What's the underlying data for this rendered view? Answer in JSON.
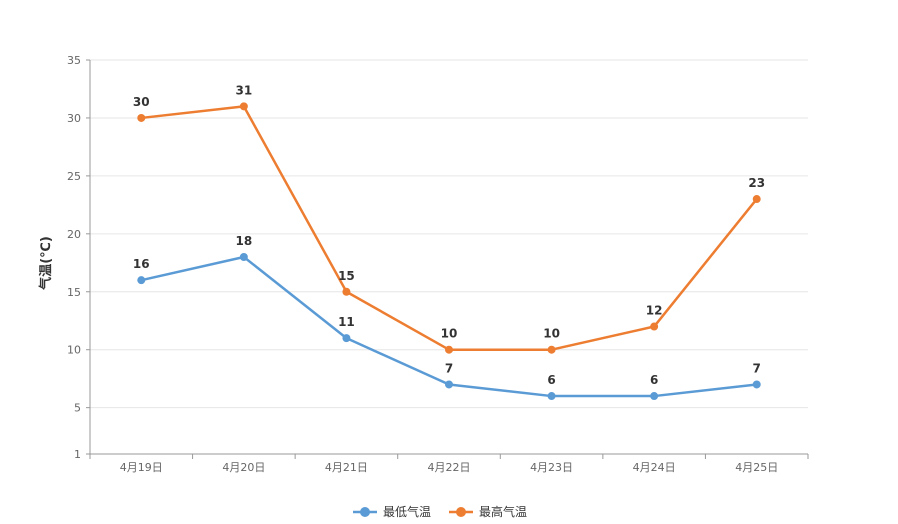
{
  "chart_data": {
    "type": "line",
    "categories": [
      "4月19日",
      "4月20日",
      "4月21日",
      "4月22日",
      "4月23日",
      "4月24日",
      "4月25日"
    ],
    "series": [
      {
        "name": "最低气温",
        "values": [
          16,
          18,
          11,
          7,
          6,
          6,
          7
        ],
        "color": "#5b9bd5"
      },
      {
        "name": "最高气温",
        "values": [
          30,
          31,
          15,
          10,
          10,
          12,
          23
        ],
        "color": "#ed7d31"
      }
    ],
    "ylabel": "气温(℃)",
    "xlabel": "",
    "title": "",
    "ylim": [
      1,
      35
    ],
    "yticks": [
      1,
      5,
      10,
      15,
      20,
      25,
      30,
      35
    ],
    "grid": true,
    "data_labels": true,
    "legend_position": "bottom-center"
  }
}
